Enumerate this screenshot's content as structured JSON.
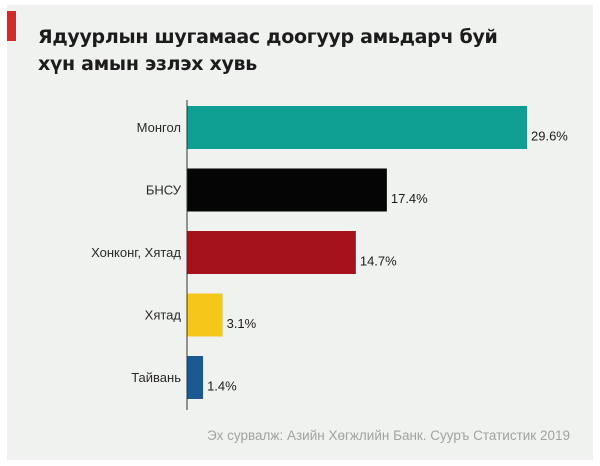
{
  "title": "Ядуурлын шугамаас доогуур амьдарч буй хүн амын эзлэх хувь",
  "source": "Эх сурвалж: Азийн Хөгжлийн Банк. Сууръ Статистик 2019",
  "colors": {
    "accent": "#d52a27",
    "axis": "#333333",
    "background": "#f0f2ef"
  },
  "chart_data": {
    "type": "bar",
    "orientation": "horizontal",
    "title": "Ядуурлын шугамаас доогуур амьдарч буй хүн амын эзлэх хувь",
    "categories": [
      "Монгол",
      "БНСУ",
      "Хонконг, Хятад",
      "Хятад",
      "Тайвань"
    ],
    "values": [
      29.6,
      17.4,
      14.7,
      3.1,
      1.4
    ],
    "value_labels": [
      "29.6%",
      "17.4%",
      "14.7%",
      "3.1%",
      "1.4%"
    ],
    "bar_colors": [
      "#0f9e92",
      "#050505",
      "#a5121b",
      "#f6c71b",
      "#1a5a90"
    ],
    "xlim": [
      0,
      30
    ],
    "grid": false,
    "legend": "none"
  }
}
